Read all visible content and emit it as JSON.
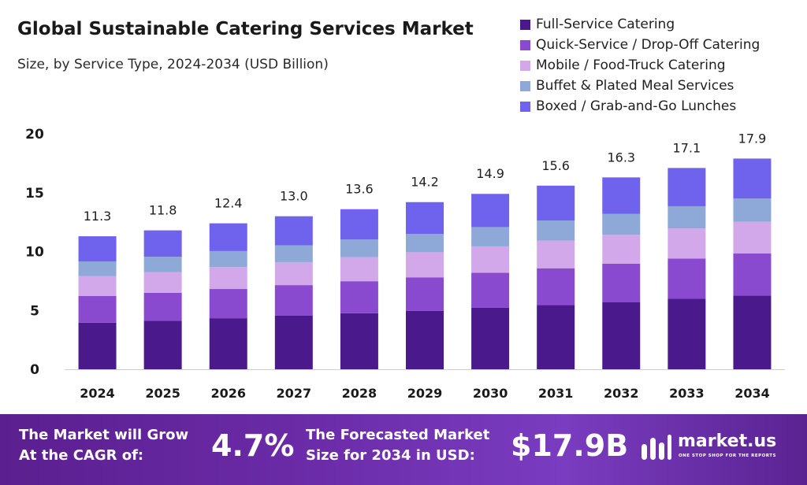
{
  "chart_data": {
    "type": "bar",
    "stacked": true,
    "title": "Global Sustainable Catering Services Market",
    "subtitle": "Size, by Service Type, 2024-2034 (USD Billion)",
    "categories": [
      "2024",
      "2025",
      "2026",
      "2027",
      "2028",
      "2029",
      "2030",
      "2031",
      "2032",
      "2033",
      "2034"
    ],
    "totals": [
      "11.3",
      "11.8",
      "12.4",
      "13.0",
      "13.6",
      "14.2",
      "14.9",
      "15.6",
      "16.3",
      "17.1",
      "17.9"
    ],
    "yticks": [
      "0",
      "5",
      "10",
      "15",
      "20"
    ],
    "ylim": [
      0,
      20
    ],
    "legend_position": "top-right",
    "grid": false,
    "series": [
      {
        "name": "Full-Service Catering",
        "color": "#4a1a8c",
        "values": [
          3.96,
          4.13,
          4.34,
          4.55,
          4.76,
          4.97,
          5.22,
          5.46,
          5.71,
          5.99,
          6.27
        ]
      },
      {
        "name": "Quick-Service / Drop-Off Catering",
        "color": "#8a4ad0",
        "values": [
          2.26,
          2.36,
          2.48,
          2.6,
          2.72,
          2.84,
          2.98,
          3.12,
          3.26,
          3.42,
          3.58
        ]
      },
      {
        "name": "Mobile / Food-Truck Catering",
        "color": "#d2a8ea",
        "values": [
          1.7,
          1.77,
          1.86,
          1.95,
          2.04,
          2.13,
          2.24,
          2.34,
          2.45,
          2.56,
          2.68
        ]
      },
      {
        "name": "Buffet & Plated Meal Services",
        "color": "#8ea8d8",
        "values": [
          1.24,
          1.3,
          1.36,
          1.43,
          1.5,
          1.56,
          1.64,
          1.72,
          1.79,
          1.88,
          1.97
        ]
      },
      {
        "name": "Boxed / Grab-and-Go Lunches",
        "color": "#6f62ec",
        "values": [
          2.14,
          2.24,
          2.36,
          2.47,
          2.58,
          2.7,
          2.82,
          2.96,
          3.09,
          3.25,
          3.4
        ]
      }
    ]
  },
  "footer": {
    "cagr_label": "The Market will Grow\nAt the CAGR of:",
    "cagr_value": "4.7%",
    "forecast_label": "The Forecasted Market\nSize for 2034 in USD:",
    "forecast_value": "$17.9B",
    "logo_text": "market.us",
    "logo_tagline": "ONE STOP SHOP FOR THE REPORTS"
  }
}
